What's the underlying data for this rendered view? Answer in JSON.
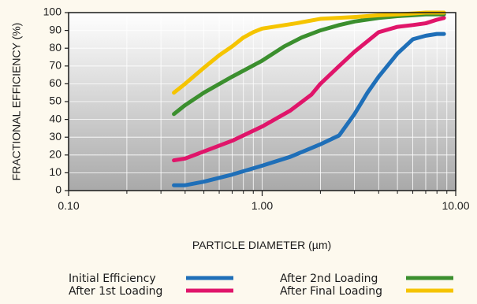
{
  "chart_data": {
    "type": "line",
    "xlabel": "PARTICLE DIAMETER (µm)",
    "ylabel": "FRACTIONAL EFFICIENCY (%)",
    "xscale": "log",
    "xlim": [
      0.1,
      10
    ],
    "ylim": [
      0,
      100
    ],
    "xticks": [
      0.1,
      1,
      10
    ],
    "xtick_labels": [
      "0.10",
      "1.00",
      "10.00"
    ],
    "yticks": [
      0,
      10,
      20,
      30,
      40,
      50,
      60,
      70,
      80,
      90,
      100
    ],
    "ytick_labels": [
      "0",
      "10",
      "20",
      "30",
      "40",
      "50",
      "60",
      "70",
      "80",
      "90",
      "100"
    ],
    "grid": true,
    "legend_position": "bottom",
    "series": [
      {
        "name": "Initial Efficiency",
        "color": "#1f6fb8",
        "x": [
          0.35,
          0.4,
          0.5,
          0.7,
          1.0,
          1.4,
          2.0,
          2.5,
          3.0,
          3.5,
          4.0,
          5.0,
          6.0,
          7.0,
          8.0,
          8.7
        ],
        "y": [
          3,
          3,
          5,
          9,
          14,
          19,
          26,
          31,
          43,
          55,
          64,
          77,
          85,
          87,
          88,
          88
        ]
      },
      {
        "name": "After 1st Loading",
        "color": "#e0156a",
        "x": [
          0.35,
          0.4,
          0.5,
          0.7,
          1.0,
          1.4,
          1.8,
          2.0,
          2.5,
          3.0,
          4.0,
          5.0,
          6.0,
          7.0,
          8.0,
          8.7
        ],
        "y": [
          17,
          18,
          22,
          28,
          36,
          45,
          54,
          60,
          70,
          78,
          89,
          92,
          93,
          94,
          96,
          97
        ]
      },
      {
        "name": "After 2nd Loading",
        "color": "#3b8f2e",
        "x": [
          0.35,
          0.4,
          0.5,
          0.7,
          1.0,
          1.3,
          1.6,
          2.0,
          2.5,
          3.0,
          4.0,
          5.0,
          6.0,
          7.0,
          8.0,
          8.7
        ],
        "y": [
          43,
          48,
          55,
          64,
          73,
          81,
          86,
          90,
          93,
          95,
          97,
          98,
          98.5,
          99,
          99,
          99
        ]
      },
      {
        "name": "After Final Loading",
        "color": "#f5c400",
        "x": [
          0.35,
          0.4,
          0.5,
          0.6,
          0.7,
          0.8,
          0.9,
          1.0,
          1.5,
          2.0,
          3.0,
          4.0,
          5.0,
          6.0,
          7.0,
          8.7
        ],
        "y": [
          55,
          60,
          69,
          76,
          81,
          86,
          89,
          91,
          94,
          96.5,
          97.5,
          98.5,
          99,
          99.5,
          100,
          100
        ]
      }
    ]
  }
}
